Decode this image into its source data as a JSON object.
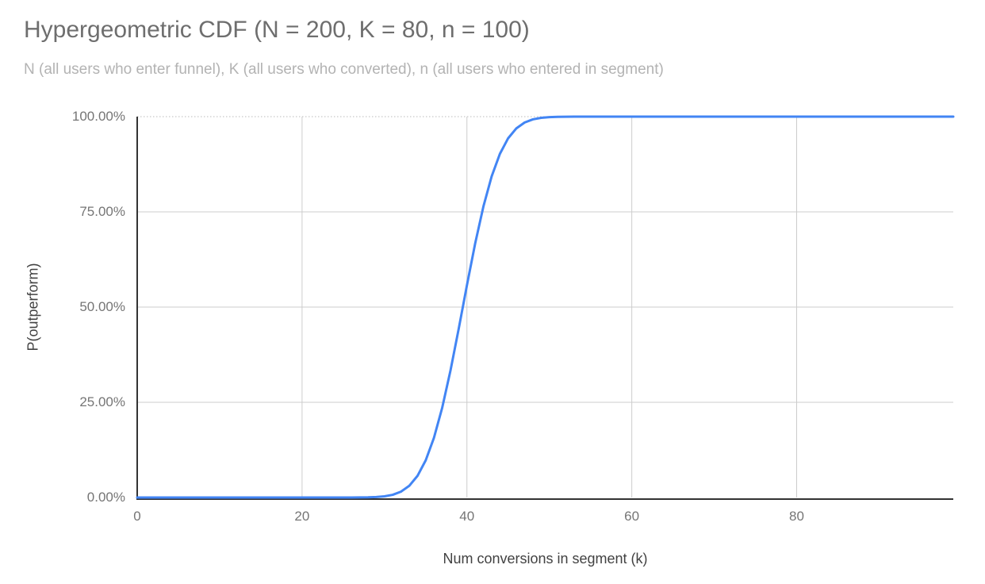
{
  "colors": {
    "title-color": "#6e6e6e",
    "subtitle-color": "#b3b3b3",
    "tick-color": "#757575",
    "axis-title-color": "#424242",
    "grid-color": "#cccccc",
    "top-grid-color": "#bbbbbb",
    "axis-color": "#333333",
    "line-color": "#4285f4",
    "background": "#ffffff"
  },
  "chart_data": {
    "type": "line",
    "title": "Hypergeometric CDF (N = 200, K = 80, n = 100)",
    "subtitle": "N (all users who enter funnel), K (all users who converted), n (all users who entered in segment)",
    "xlabel": "Num conversions in segment (k)",
    "ylabel": "P(outperform)",
    "grid": true,
    "legend": "none",
    "x_range": [
      0,
      99
    ],
    "y_range": [
      0,
      1
    ],
    "x_ticks": [
      {
        "label": "0",
        "value": 0
      },
      {
        "label": "20",
        "value": 20
      },
      {
        "label": "40",
        "value": 40
      },
      {
        "label": "60",
        "value": 60
      },
      {
        "label": "80",
        "value": 80
      }
    ],
    "y_ticks": [
      {
        "label": "0.00%",
        "value": 0
      },
      {
        "label": "25.00%",
        "value": 0.25
      },
      {
        "label": "50.00%",
        "value": 0.5
      },
      {
        "label": "75.00%",
        "value": 0.75
      },
      {
        "label": "100.00%",
        "value": 1
      }
    ],
    "series": [
      {
        "name": "P(outperform)",
        "color": "#4285f4",
        "x_start": 0,
        "x_step": 1,
        "values": [
          0,
          0,
          0,
          0,
          0,
          0,
          0,
          0,
          0,
          0,
          0,
          0,
          0,
          0,
          0,
          0,
          0,
          0,
          0,
          0,
          0,
          0,
          0,
          0,
          0,
          1e-05,
          5e-05,
          0.00016,
          0.00046,
          0.00125,
          0.00312,
          0.0072,
          0.01542,
          0.03067,
          0.05672,
          0.09766,
          0.15679,
          0.23576,
          0.33292,
          0.44275,
          0.55725,
          0.66708,
          0.76424,
          0.84321,
          0.90234,
          0.94328,
          0.96933,
          0.98458,
          0.9928,
          0.99688,
          0.99875,
          0.99954,
          0.99984,
          0.99995,
          0.99999,
          1,
          1,
          1,
          1,
          1,
          1,
          1,
          1,
          1,
          1,
          1,
          1,
          1,
          1,
          1,
          1,
          1,
          1,
          1,
          1,
          1,
          1,
          1,
          1,
          1,
          1,
          1,
          1,
          1,
          1,
          1,
          1,
          1,
          1,
          1,
          1,
          1,
          1,
          1,
          1,
          1,
          1,
          1,
          1,
          1
        ]
      }
    ]
  }
}
